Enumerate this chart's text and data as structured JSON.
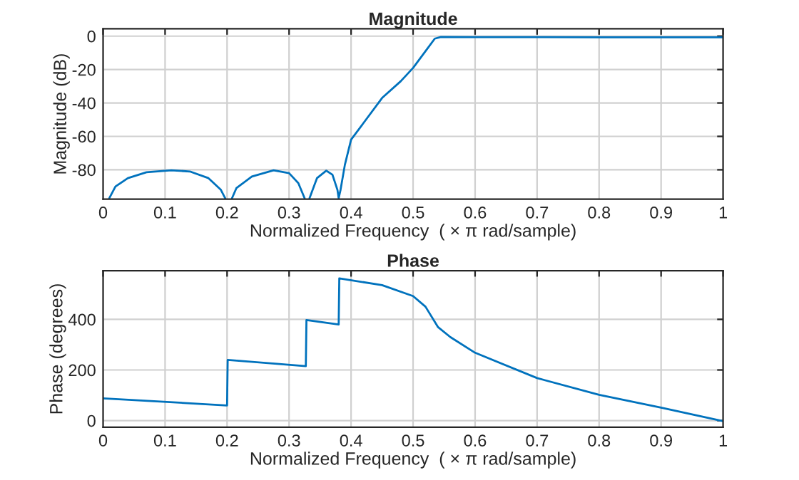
{
  "chart_data": [
    {
      "type": "line",
      "title": "Magnitude",
      "xlabel": "Normalized Frequency  ( × π rad/sample)",
      "ylabel": "Magnitude (dB)",
      "xlim": [
        0,
        1
      ],
      "xticks": [
        0,
        0.1,
        0.2,
        0.3,
        0.4,
        0.5,
        0.6,
        0.7,
        0.8,
        0.9,
        1
      ],
      "ylim": [
        -97.6,
        4.4
      ],
      "yticks": [
        -80,
        -60,
        -40,
        -20,
        0
      ],
      "grid": true,
      "legend": false,
      "series": [
        {
          "color": "#0072bd",
          "x": [
            0.01,
            0.02,
            0.04,
            0.07,
            0.11,
            0.14,
            0.17,
            0.19,
            0.197,
            0.2,
            0.208,
            0.215,
            0.24,
            0.275,
            0.3,
            0.315,
            0.325,
            0.329,
            0.333,
            0.345,
            0.36,
            0.37,
            0.378,
            0.38,
            0.383,
            0.39,
            0.4,
            0.42,
            0.45,
            0.48,
            0.5,
            0.52,
            0.535,
            0.545,
            0.6,
            0.7,
            0.8,
            0.9,
            1.0
          ],
          "values": [
            -97,
            -90,
            -85,
            -81.5,
            -80.3,
            -81,
            -85,
            -92,
            -97,
            null,
            -97,
            -91,
            -84,
            -80.3,
            -82,
            -88,
            -97,
            null,
            -97,
            -85,
            -80.5,
            -83,
            -92,
            -97,
            -92,
            -77,
            -62,
            -52,
            -37,
            -27,
            -19,
            -9,
            -1.5,
            -0.5,
            -0.6,
            -0.6,
            -0.7,
            -0.7,
            -0.7
          ]
        }
      ]
    },
    {
      "type": "line",
      "title": "Phase",
      "xlabel": "Normalized Frequency  ( × π rad/sample)",
      "ylabel": "Phase (degrees)",
      "xlim": [
        0,
        1
      ],
      "xticks": [
        0,
        0.1,
        0.2,
        0.3,
        0.4,
        0.5,
        0.6,
        0.7,
        0.8,
        0.9,
        1
      ],
      "ylim": [
        -26,
        592
      ],
      "yticks": [
        0,
        200,
        400
      ],
      "grid": true,
      "legend": false,
      "series": [
        {
          "color": "#0072bd",
          "x": [
            0,
            0.2,
            0.201,
            0.327,
            0.328,
            0.38,
            0.381,
            0.45,
            0.5,
            0.52,
            0.54,
            0.56,
            0.6,
            0.7,
            0.8,
            0.9,
            1.0
          ],
          "values": [
            88,
            60,
            240,
            215,
            397,
            380,
            562,
            535,
            492,
            450,
            370,
            330,
            268,
            168,
            102,
            51,
            -2
          ]
        }
      ]
    }
  ]
}
